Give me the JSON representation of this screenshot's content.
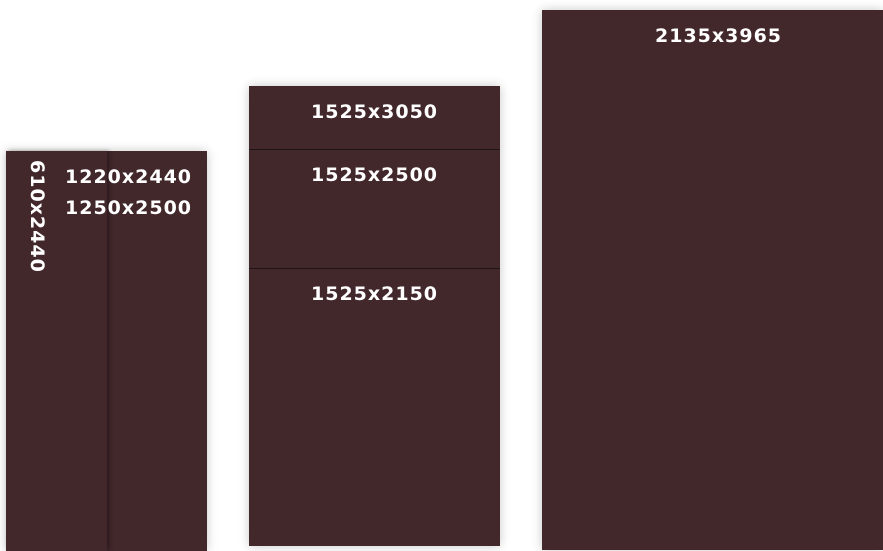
{
  "colors": {
    "sheet": "#42272B",
    "background": "#FFFFFF",
    "divider": "#1F1416",
    "text": "#FFFFFF"
  },
  "group_left": {
    "narrow_label": "610x2440",
    "label_a": "1220x2440",
    "label_b": "1250x2500"
  },
  "group_middle": {
    "label_top": "1525x3050",
    "label_mid": "1525x2500",
    "label_bottom": "1525x2150"
  },
  "group_right": {
    "label": "2135x3965"
  }
}
